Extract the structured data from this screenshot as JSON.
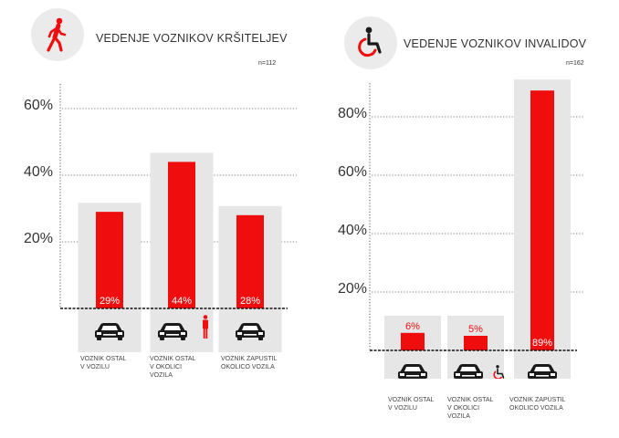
{
  "colors": {
    "bar": "#ef0d0d",
    "column_bg": "#e6e6e6",
    "grid": "#555555",
    "text": "#333333"
  },
  "charts": [
    {
      "icon": "pedestrian-icon",
      "title": "VEDENJE VOZNIKOV KRŠITELJEV",
      "n": "n=112",
      "ticks": [
        "20%",
        "40%",
        "60%"
      ],
      "categories": [
        {
          "icon": "car-icon",
          "label": [
            "VOZNIK OSTAL",
            "V VOZILU"
          ]
        },
        {
          "icon": "car-pedestrian-icon",
          "label": [
            "VOZNIK OSTAL",
            "V OKOLICI",
            "VOZILA"
          ]
        },
        {
          "icon": "car-icon",
          "label": [
            "VOZNIK ZAPUSTIL",
            "OKOLICO VOZILA"
          ]
        }
      ],
      "value_labels": [
        "29%",
        "44%",
        "28%"
      ]
    },
    {
      "icon": "wheelchair-icon",
      "title": "VEDENJE VOZNIKOV INVALIDOV",
      "n": "n=162",
      "ticks": [
        "20%",
        "40%",
        "60%",
        "80%"
      ],
      "categories": [
        {
          "icon": "car-icon",
          "label": [
            "VOZNIK OSTAL",
            "V VOZILU"
          ]
        },
        {
          "icon": "car-wheelchair-icon",
          "label": [
            "VOZNIK OSTAL",
            "V OKOLICI",
            "VOZILA"
          ]
        },
        {
          "icon": "car-icon",
          "label": [
            "VOZNIK ZAPUSTIL",
            "OKOLICO VOZILA"
          ]
        }
      ],
      "value_labels": [
        "6%",
        "5%",
        "89%"
      ]
    }
  ],
  "chart_data": [
    {
      "type": "bar",
      "title": "VEDENJE VOZNIKOV KRŠITELJEV",
      "subtitle": "n=112",
      "categories": [
        "VOZNIK OSTAL V VOZILU",
        "VOZNIK OSTAL V OKOLICI VOZILA",
        "VOZNIK ZAPUSTIL OKOLICO VOZILA"
      ],
      "values": [
        29,
        44,
        28
      ],
      "unit": "%",
      "ylim": [
        0,
        65
      ],
      "ticks": [
        20,
        40,
        60
      ],
      "grid": "dotted horizontal"
    },
    {
      "type": "bar",
      "title": "VEDENJE VOZNIKOV INVALIDOV",
      "subtitle": "n=162",
      "categories": [
        "VOZNIK OSTAL V VOZILU",
        "VOZNIK OSTAL V OKOLICI VOZILA",
        "VOZNIK ZAPUSTIL OKOLICO VOZILA"
      ],
      "values": [
        6,
        5,
        89
      ],
      "unit": "%",
      "ylim": [
        0,
        90
      ],
      "ticks": [
        20,
        40,
        60,
        80
      ],
      "grid": "dotted horizontal"
    }
  ]
}
